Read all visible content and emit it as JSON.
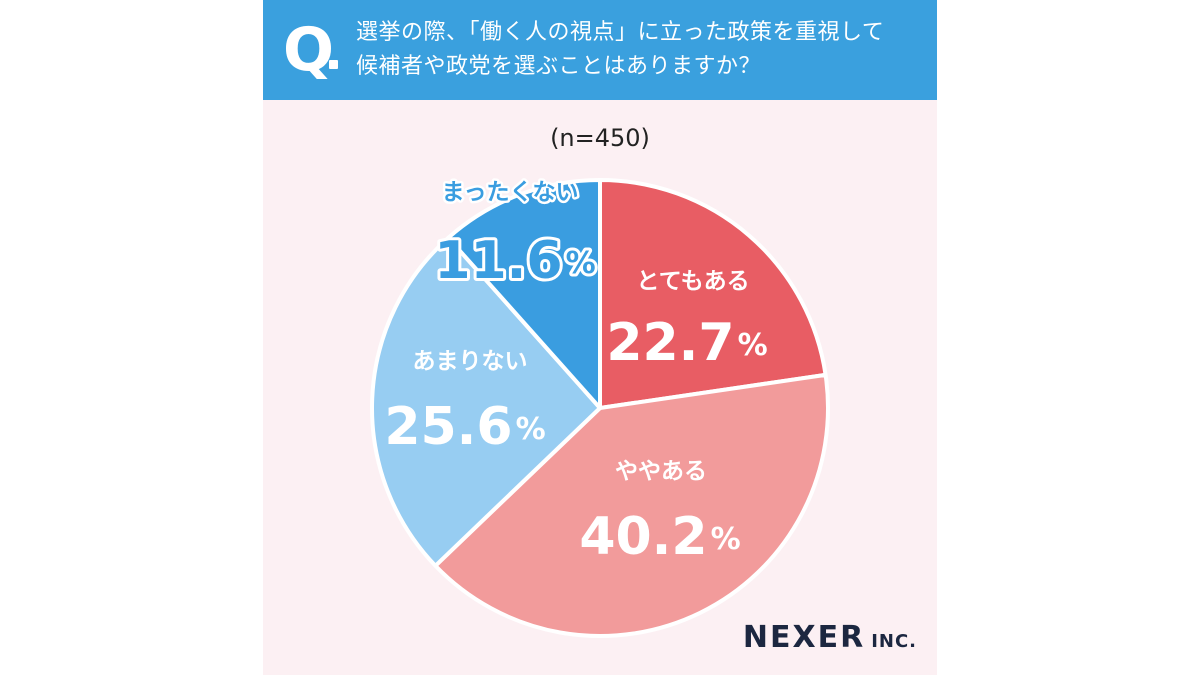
{
  "question": {
    "mark": "Q",
    "line1": "選挙の際、「働く人の視点」に立った政策を重視して",
    "line2": "候補者や政党を選ぶことはありますか？"
  },
  "chart_data": {
    "type": "pie",
    "sample_label": "(n=450)",
    "start_angle_deg": 0,
    "direction": "clockwise",
    "slices": [
      {
        "label": "とてもある",
        "value": 22.7,
        "value_text": "22.7",
        "unit": "%",
        "color": "#e85d64",
        "text_color": "#ffffff",
        "label_pos": [
          693,
          282
        ],
        "value_pos": [
          687,
          346
        ]
      },
      {
        "label": "ややある",
        "value": 40.2,
        "value_text": "40.2",
        "unit": "%",
        "color": "#f29b9b",
        "text_color": "#ffffff",
        "label_pos": [
          661,
          472
        ],
        "value_pos": [
          660,
          540
        ]
      },
      {
        "label": "あまりない",
        "value": 25.6,
        "value_text": "25.6",
        "unit": "%",
        "color": "#97cdf2",
        "text_color": "#ffffff",
        "label_pos": [
          470,
          362
        ],
        "value_pos": [
          465,
          430
        ]
      },
      {
        "label": "まったくない",
        "value": 11.6,
        "value_text": "11.6",
        "unit": "%",
        "color": "#3a9de0",
        "text_color": "#3a9de0",
        "text_stroke": "#ffffff",
        "label_pos": [
          510,
          193
        ],
        "value_pos": [
          515,
          264
        ]
      }
    ]
  },
  "logo": {
    "main": "NEXER",
    "suffix": "INC."
  }
}
